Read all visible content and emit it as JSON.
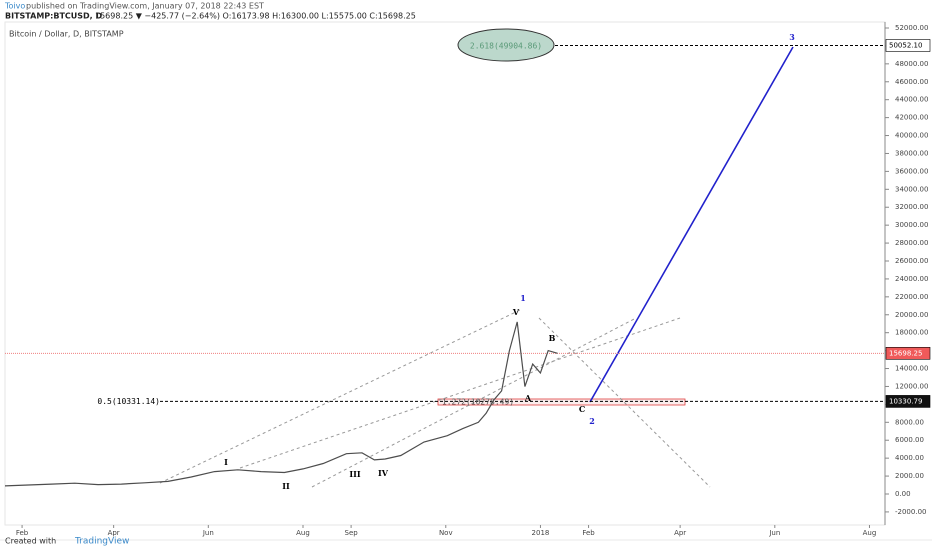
{
  "header": {
    "author": "Toivo",
    "published": "published on TradingView.com, January 07, 2018 22:43 EST",
    "symbol": "BITSTAMP:BTCUSD, D",
    "quote": "15698.25 ▼ −425.77 (−2.64%) O:16173.98 H:16300.00 L:15575.00 C:15698.25"
  },
  "footer": {
    "created": "Created with",
    "brand": "TradingView"
  },
  "chart_data": {
    "type": "line",
    "title": "Bitcoin / Dollar, D, BITSTAMP",
    "x": [
      20,
      35,
      50,
      65,
      80,
      95,
      110,
      125,
      140,
      155,
      170,
      185,
      200,
      212,
      225,
      240,
      250,
      258,
      265,
      275,
      290,
      305,
      315,
      325,
      330,
      335,
      340,
      345,
      350,
      355,
      360,
      365,
      370,
      376
    ],
    "series": [
      {
        "color": "#4d4d4d",
        "values": [
          900,
          1000,
          1100,
          1200,
          1050,
          1100,
          1250,
          1400,
          1900,
          2500,
          2700,
          2500,
          2400,
          2800,
          3400,
          4500,
          4600,
          3800,
          3900,
          4300,
          5800,
          6500,
          7300,
          8000,
          9000,
          10500,
          11500,
          16000,
          19200,
          12000,
          14500,
          13500,
          16000,
          15698.25
        ]
      }
    ],
    "xlim": [
      20,
      587
    ],
    "xticks": [
      {
        "value": 31,
        "label": "Feb"
      },
      {
        "value": 90,
        "label": "Apr"
      },
      {
        "value": 151,
        "label": "Jun"
      },
      {
        "value": 212,
        "label": "Aug"
      },
      {
        "value": 243,
        "label": "Sep"
      },
      {
        "value": 304,
        "label": "Nov"
      },
      {
        "value": 365,
        "label": "2018"
      },
      {
        "value": 396,
        "label": "Feb"
      },
      {
        "value": 455,
        "label": "Apr"
      },
      {
        "value": 516,
        "label": "Jun"
      },
      {
        "value": 577,
        "label": "Aug"
      }
    ],
    "ylim": [
      -3460,
      52670
    ],
    "yticks": [
      {
        "value": -2000,
        "label": "-2000.00"
      },
      {
        "value": 0,
        "label": "0.00"
      },
      {
        "value": 2000,
        "label": "2000.00"
      },
      {
        "value": 4000,
        "label": "4000.00"
      },
      {
        "value": 6000,
        "label": "6000.00"
      },
      {
        "value": 8000,
        "label": "8000.00"
      },
      {
        "value": 10000,
        "label": "10000.00"
      },
      {
        "value": 12000,
        "label": "12000.00"
      },
      {
        "value": 14000,
        "label": "14000.00"
      },
      {
        "value": 16000,
        "label": "16000.00"
      },
      {
        "value": 18000,
        "label": "18000.00"
      },
      {
        "value": 20000,
        "label": "20000.00"
      },
      {
        "value": 22000,
        "label": "22000.00"
      },
      {
        "value": 24000,
        "label": "24000.00"
      },
      {
        "value": 26000,
        "label": "26000.00"
      },
      {
        "value": 28000,
        "label": "28000.00"
      },
      {
        "value": 30000,
        "label": "30000.00"
      },
      {
        "value": 32000,
        "label": "32000.00"
      },
      {
        "value": 34000,
        "label": "34000.00"
      },
      {
        "value": 36000,
        "label": "36000.00"
      },
      {
        "value": 38000,
        "label": "38000.00"
      },
      {
        "value": 40000,
        "label": "40000.00"
      },
      {
        "value": 42000,
        "label": "42000.00"
      },
      {
        "value": 44000,
        "label": "44000.00"
      },
      {
        "value": 46000,
        "label": "46000.00"
      },
      {
        "value": 48000,
        "label": "48000.00"
      },
      {
        "value": 50000,
        "label": "50000.00"
      },
      {
        "value": 52000,
        "label": "52000.00"
      }
    ],
    "levels": {
      "values": [
        50052.1,
        15698.25,
        10330.79
      ],
      "value_labels": [
        "50052.10",
        "15698.25",
        "10330.79"
      ]
    },
    "annotations": [
      "0.5(10331.14)",
      "1.272(10278.49)",
      "2.618(49904.86)"
    ],
    "waves": [
      "1",
      "2",
      "3",
      "V",
      "A",
      "B",
      "C",
      "I",
      "II",
      "III",
      "IV"
    ]
  }
}
